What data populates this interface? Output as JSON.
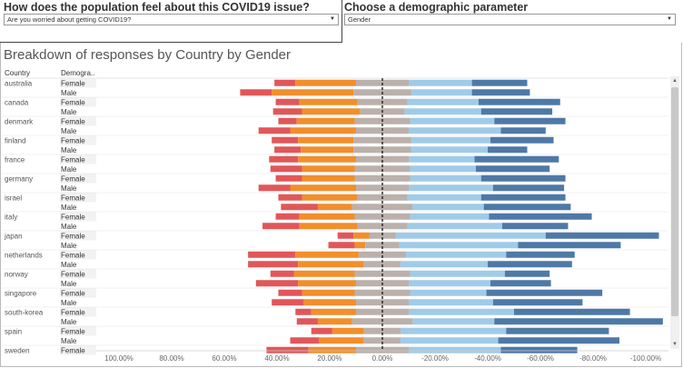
{
  "filters": {
    "issue_title": "How does the population feel about this COVID19 issue?",
    "issue_value": "Are you worried about getting COVID19?",
    "param_title": "Choose a demographic parameter",
    "param_value": "Gender"
  },
  "chart_data": {
    "type": "bar",
    "title": "Breakdown of responses by Country by Gender",
    "row_headers": [
      "Country",
      "Demogra.."
    ],
    "xlim": [
      100,
      -100
    ],
    "x_ticks": [
      "100.00%",
      "80.00%",
      "60.00%",
      "40.00%",
      "20.00%",
      "0.00%",
      "-20.00%",
      "-40.00%",
      "-60.00%",
      "-80.00%",
      "-100.00%"
    ],
    "x_tick_values": [
      100,
      80,
      60,
      40,
      20,
      0,
      -20,
      -40,
      -60,
      -80,
      -100
    ],
    "colors": [
      "#e15759",
      "#f28e2b",
      "#bab0ac",
      "#a0cbe8",
      "#4e79a7"
    ],
    "rows": [
      {
        "country": "australia",
        "group": "Female",
        "v": [
          8,
          23,
          20,
          24,
          21
        ]
      },
      {
        "country": "",
        "group": "Male",
        "v": [
          12,
          31,
          22,
          23,
          22
        ]
      },
      {
        "country": "canada",
        "group": "Female",
        "v": [
          9,
          22,
          19,
          27,
          31
        ]
      },
      {
        "country": "",
        "group": "Male",
        "v": [
          11,
          22,
          17,
          29,
          27
        ]
      },
      {
        "country": "denmark",
        "group": "Female",
        "v": [
          7,
          22,
          21,
          32,
          27
        ]
      },
      {
        "country": "",
        "group": "Male",
        "v": [
          12,
          25,
          20,
          35,
          17
        ]
      },
      {
        "country": "finland",
        "group": "Female",
        "v": [
          10,
          21,
          22,
          30,
          24
        ]
      },
      {
        "country": "",
        "group": "Male",
        "v": [
          10,
          20,
          22,
          29,
          15
        ]
      },
      {
        "country": "france",
        "group": "Female",
        "v": [
          11,
          22,
          20,
          25,
          32
        ]
      },
      {
        "country": "",
        "group": "Male",
        "v": [
          12,
          20,
          21,
          25,
          28
        ]
      },
      {
        "country": "germany",
        "group": "Female",
        "v": [
          10,
          20,
          21,
          27,
          32
        ]
      },
      {
        "country": "",
        "group": "Male",
        "v": [
          12,
          25,
          20,
          32,
          27
        ]
      },
      {
        "country": "israel",
        "group": "Female",
        "v": [
          9,
          21,
          19,
          28,
          32
        ]
      },
      {
        "country": "",
        "group": "Male",
        "v": [
          14,
          13,
          23,
          27,
          33
        ]
      },
      {
        "country": "italy",
        "group": "Female",
        "v": [
          9,
          21,
          21,
          30,
          39
        ]
      },
      {
        "country": "",
        "group": "Male",
        "v": [
          14,
          22,
          19,
          36,
          25
        ]
      },
      {
        "country": "japan",
        "group": "Female",
        "v": [
          6,
          6,
          10,
          57,
          43
        ]
      },
      {
        "country": "",
        "group": "Male",
        "v": [
          10,
          4,
          13,
          45,
          39
        ]
      },
      {
        "country": "netherlands",
        "group": "Female",
        "v": [
          18,
          24,
          18,
          38,
          26
        ]
      },
      {
        "country": "",
        "group": "Male",
        "v": [
          19,
          25,
          14,
          33,
          32
        ]
      },
      {
        "country": "norway",
        "group": "Female",
        "v": [
          9,
          23,
          21,
          36,
          17
        ]
      },
      {
        "country": "",
        "group": "Male",
        "v": [
          16,
          22,
          20,
          31,
          23
        ]
      },
      {
        "country": "singapore",
        "group": "Female",
        "v": [
          9,
          20,
          21,
          29,
          44
        ]
      },
      {
        "country": "",
        "group": "Male",
        "v": [
          12,
          20,
          20,
          32,
          34
        ]
      },
      {
        "country": "south-korea",
        "group": "Female",
        "v": [
          6,
          17,
          20,
          40,
          44
        ]
      },
      {
        "country": "",
        "group": "Male",
        "v": [
          8,
          13,
          23,
          31,
          64
        ]
      },
      {
        "country": "spain",
        "group": "Female",
        "v": [
          8,
          12,
          14,
          40,
          39
        ]
      },
      {
        "country": "",
        "group": "Male",
        "v": [
          11,
          17,
          14,
          37,
          46
        ]
      },
      {
        "country": "sweden",
        "group": "Female",
        "v": [
          16,
          18,
          20,
          35,
          29
        ]
      }
    ]
  }
}
